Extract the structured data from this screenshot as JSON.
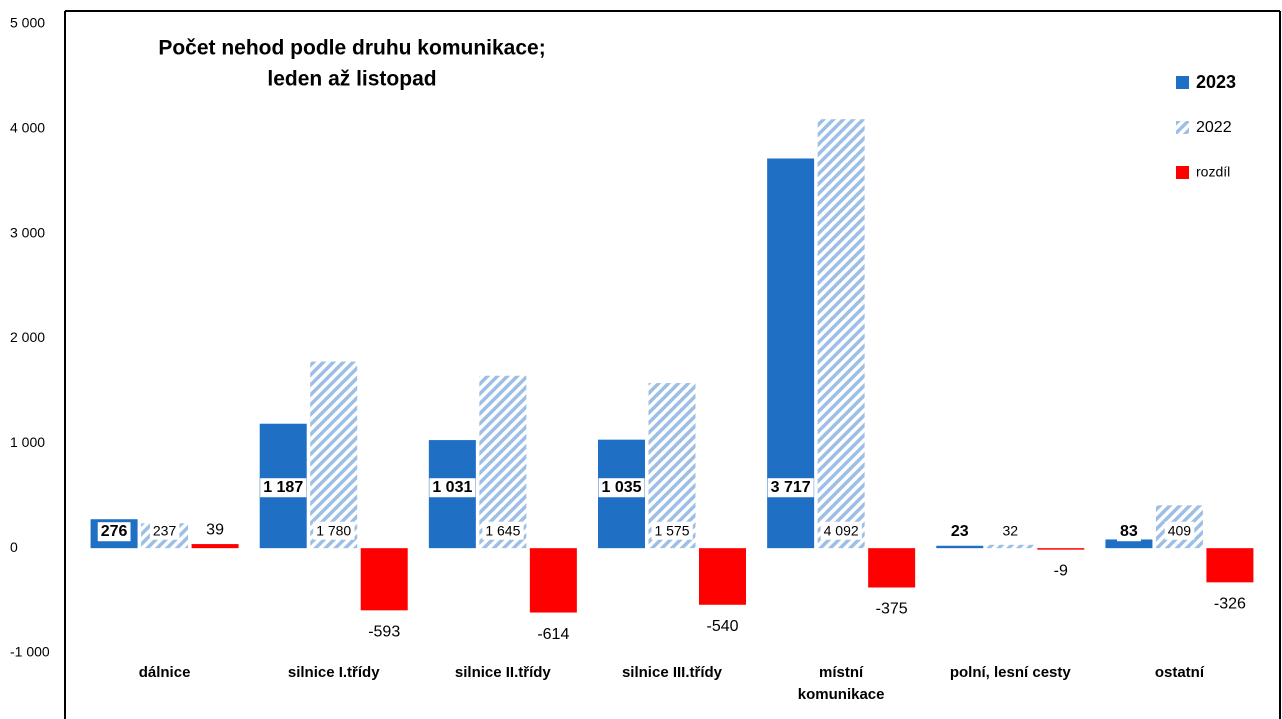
{
  "chart_data": {
    "type": "bar",
    "title": "Počet nehod podle druhu komunikace;",
    "subtitle": "leden až listopad",
    "categories": [
      "dálnice",
      "silnice I.třídy",
      "silnice II.třídy",
      "silnice III.třídy",
      [
        "místní",
        "komunikace"
      ],
      "polní, lesní cesty",
      "ostatní"
    ],
    "series": [
      {
        "name": "2023",
        "color": "#1f6fc5",
        "values": [
          276,
          1187,
          1031,
          1035,
          3717,
          23,
          83
        ],
        "value_labels": [
          "276",
          "1 187",
          "1 031",
          "1 035",
          "3 717",
          "23",
          "83"
        ]
      },
      {
        "name": "2022",
        "color": "#9dbfe6",
        "values": [
          237,
          1780,
          1645,
          1575,
          4092,
          32,
          409
        ],
        "value_labels": [
          "237",
          "1 780",
          "1 645",
          "1 575",
          "4 092",
          "32",
          "409"
        ]
      },
      {
        "name": "rozdíl",
        "color": "#ff0000",
        "values": [
          39,
          -593,
          -614,
          -540,
          -375,
          -9,
          -326
        ]
      }
    ],
    "ylim": [
      -1000,
      5000
    ],
    "yticks": [
      {
        "value": -1000,
        "label": "-1 000"
      },
      0,
      {
        "value": 1000,
        "label": "1 000"
      },
      {
        "value": 2000,
        "label": "2 000"
      },
      {
        "value": 3000,
        "label": "3 000"
      },
      {
        "value": 4000,
        "label": "4 000"
      },
      {
        "value": 5000,
        "label": "5 000"
      }
    ],
    "grid": false,
    "legend": "top-right"
  }
}
